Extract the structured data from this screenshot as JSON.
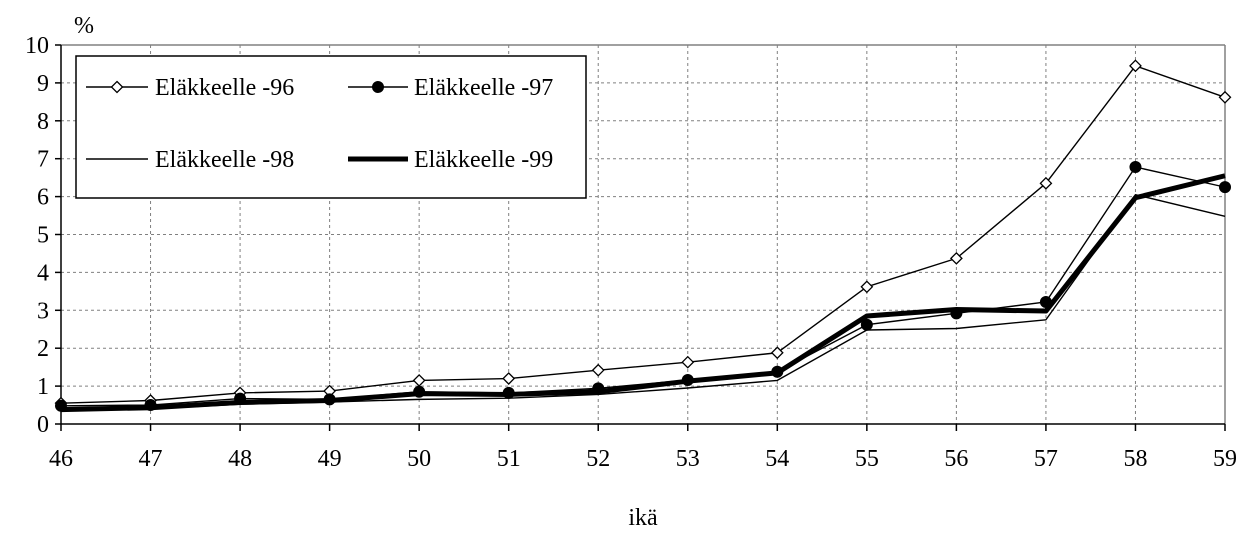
{
  "chart_data": {
    "type": "line",
    "title": "",
    "xlabel": "ikä",
    "ylabel": "%",
    "x": [
      46,
      47,
      48,
      49,
      50,
      51,
      52,
      53,
      54,
      55,
      56,
      57,
      58,
      59
    ],
    "x_tick_labels": [
      "46",
      "47",
      "48",
      "49",
      "50",
      "51",
      "52",
      "53",
      "54",
      "55",
      "56",
      "57",
      "58",
      "59"
    ],
    "ylim": [
      0,
      10
    ],
    "y_ticks": [
      0,
      1,
      2,
      3,
      4,
      5,
      6,
      7,
      8,
      9,
      10
    ],
    "y_tick_labels": [
      "0",
      "1",
      "2",
      "3",
      "4",
      "5",
      "6",
      "7",
      "8",
      "9",
      "10"
    ],
    "grid": true,
    "legend_position": "top-left",
    "series": [
      {
        "name": "Eläkkeelle -96",
        "marker": "open-diamond",
        "line_weight": "thin",
        "values": [
          0.55,
          0.62,
          0.82,
          0.87,
          1.15,
          1.2,
          1.42,
          1.63,
          1.88,
          3.62,
          4.37,
          6.35,
          9.45,
          8.62
        ]
      },
      {
        "name": "Eläkkeelle -97",
        "marker": "filled-circle",
        "line_weight": "thin",
        "values": [
          0.48,
          0.5,
          0.67,
          0.65,
          0.85,
          0.82,
          0.94,
          1.16,
          1.38,
          2.62,
          2.92,
          3.22,
          6.78,
          6.25
        ]
      },
      {
        "name": "Eläkkeelle -98",
        "marker": "none",
        "line_weight": "thin",
        "values": [
          0.35,
          0.4,
          0.52,
          0.58,
          0.65,
          0.68,
          0.78,
          0.95,
          1.15,
          2.48,
          2.52,
          2.75,
          6.05,
          5.48
        ]
      },
      {
        "name": "Eläkkeelle -99",
        "marker": "none",
        "line_weight": "thick",
        "values": [
          0.38,
          0.43,
          0.57,
          0.62,
          0.8,
          0.78,
          0.85,
          1.13,
          1.35,
          2.85,
          3.02,
          2.98,
          5.97,
          6.55
        ]
      }
    ]
  }
}
